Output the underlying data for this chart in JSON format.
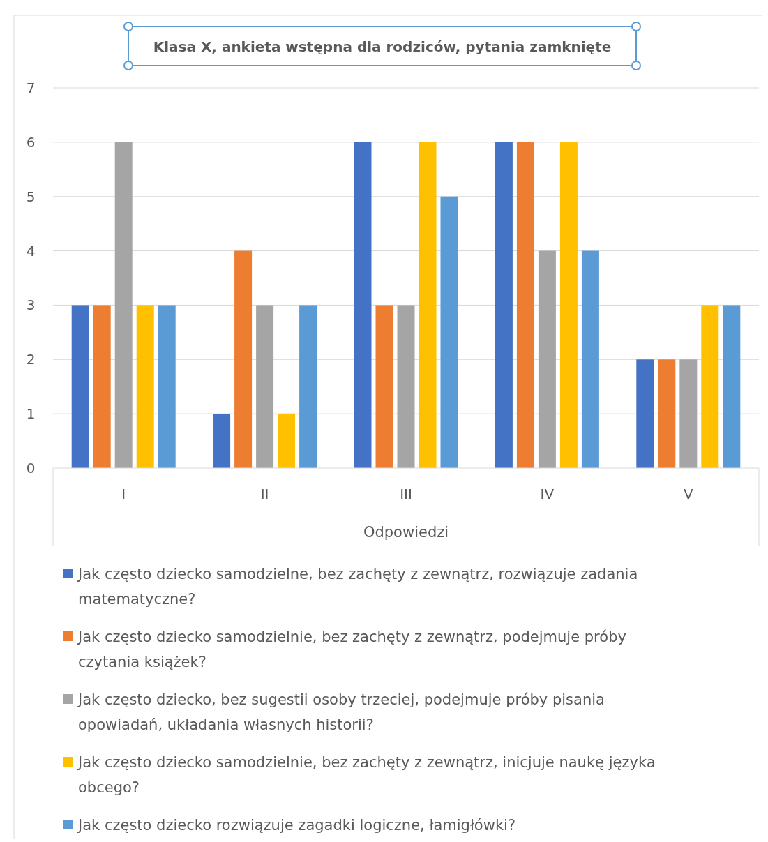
{
  "chart_data": {
    "type": "bar",
    "title": "Klasa X, ankieta wstępna dla rodziców, pytania zamknięte",
    "xlabel": "Odpowiedzi",
    "categories": [
      "I",
      "II",
      "III",
      "IV",
      "V"
    ],
    "series": [
      {
        "name": "Jak często dziecko samodzielne, bez zachęty z zewnątrz, rozwiązuje zadania matematyczne?",
        "color": "#4472c4",
        "values": [
          3,
          1,
          6,
          6,
          2
        ]
      },
      {
        "name": "Jak często dziecko samodzielnie, bez zachęty z zewnątrz, podejmuje próby czytania książek?",
        "color": "#ed7d31",
        "values": [
          3,
          4,
          3,
          6,
          2
        ]
      },
      {
        "name": "Jak często dziecko, bez sugestii osoby trzeciej, podejmuje próby pisania opowiadań, układania własnych historii?",
        "color": "#a5a5a5",
        "values": [
          6,
          3,
          3,
          4,
          2
        ]
      },
      {
        "name": "Jak często dziecko samodzielnie, bez zachęty z zewnątrz, inicjuje naukę języka obcego?",
        "color": "#ffc000",
        "values": [
          3,
          1,
          6,
          6,
          3
        ]
      },
      {
        "name": "Jak często dziecko rozwiązuje zagadki logiczne, łamigłówki?",
        "color": "#5b9bd5",
        "values": [
          3,
          3,
          5,
          4,
          3
        ]
      }
    ],
    "ylim": [
      0,
      7
    ],
    "yticks": [
      0,
      1,
      2,
      3,
      4,
      5,
      6,
      7
    ],
    "grid": "y",
    "legend": "bottom"
  }
}
